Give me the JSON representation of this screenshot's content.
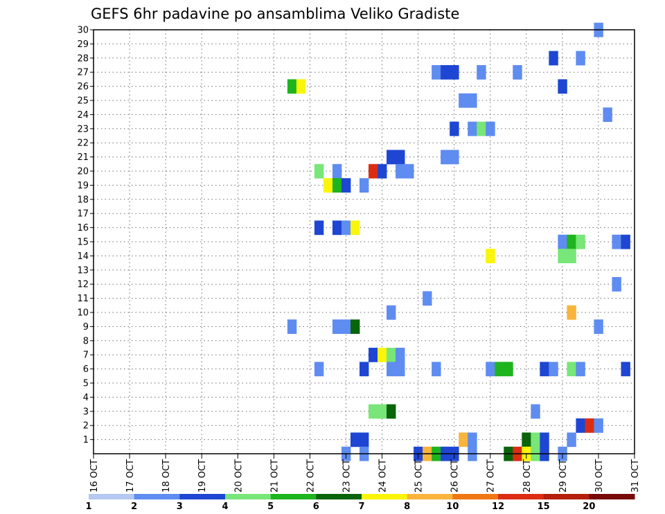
{
  "chart_data": {
    "type": "heatmap",
    "title": "GEFS 6hr padavine po ansamblima Veliko Gradiste",
    "x_tick_labels": [
      "16 OCT",
      "17 OCT",
      "18 OCT",
      "19 OCT",
      "20 OCT",
      "21 OCT",
      "22 OCT",
      "23 OCT",
      "24 OCT",
      "25 OCT",
      "26 OCT",
      "27 OCT",
      "28 OCT",
      "29 OCT",
      "30 OCT",
      "31 OCT"
    ],
    "x_range_days": [
      16,
      31
    ],
    "y_tick_labels": [
      "1",
      "2",
      "3",
      "4",
      "5",
      "6",
      "7",
      "8",
      "9",
      "10",
      "11",
      "12",
      "13",
      "14",
      "15",
      "16",
      "17",
      "18",
      "19",
      "20",
      "21",
      "22",
      "23",
      "24",
      "25",
      "26",
      "27",
      "28",
      "29",
      "30"
    ],
    "y_range": [
      0,
      30
    ],
    "grid": true,
    "legend": {
      "placement": "bottom",
      "colors": [
        "#b4c8f0",
        "#5f8cf0",
        "#1e46d2",
        "#78e678",
        "#1eb41e",
        "#0a640a",
        "#faf50a",
        "#fab43c",
        "#f07814",
        "#dc2d14",
        "#b41e0a",
        "#780a0a"
      ],
      "labels": [
        "1",
        "2",
        "3",
        "4",
        "5",
        "6",
        "7",
        "8",
        "10",
        "12",
        "15",
        "20"
      ]
    },
    "cells": [
      [
        30,
        30,
        1
      ],
      [
        29.5,
        28,
        1
      ],
      [
        28.75,
        28,
        2
      ],
      [
        25.5,
        27,
        1
      ],
      [
        25.75,
        27,
        2
      ],
      [
        26,
        27,
        2
      ],
      [
        26.75,
        27,
        1
      ],
      [
        27.75,
        27,
        1
      ],
      [
        21.5,
        26,
        4
      ],
      [
        21.75,
        26,
        6
      ],
      [
        29,
        26,
        2
      ],
      [
        26.25,
        25,
        1
      ],
      [
        26.5,
        25,
        1
      ],
      [
        30.25,
        24,
        1
      ],
      [
        26,
        23,
        2
      ],
      [
        26.5,
        23,
        1
      ],
      [
        26.75,
        23,
        3
      ],
      [
        27,
        23,
        1
      ],
      [
        24.25,
        21,
        2
      ],
      [
        24.5,
        21,
        2
      ],
      [
        25.75,
        21,
        1
      ],
      [
        26,
        21,
        1
      ],
      [
        22.25,
        20,
        3
      ],
      [
        22.75,
        20,
        1
      ],
      [
        23.75,
        20,
        9
      ],
      [
        24,
        20,
        2
      ],
      [
        24.5,
        20,
        1
      ],
      [
        24.75,
        20,
        1
      ],
      [
        22.5,
        19,
        6
      ],
      [
        22.75,
        19,
        4
      ],
      [
        23,
        19,
        2
      ],
      [
        23.5,
        19,
        1
      ],
      [
        22.25,
        16,
        2
      ],
      [
        22.75,
        16,
        2
      ],
      [
        23,
        16,
        1
      ],
      [
        23.25,
        16,
        6
      ],
      [
        29,
        15,
        1
      ],
      [
        29.25,
        15,
        4
      ],
      [
        29.5,
        15,
        3
      ],
      [
        30.5,
        15,
        1
      ],
      [
        30.75,
        15,
        2
      ],
      [
        27,
        14,
        6
      ],
      [
        29,
        14,
        3
      ],
      [
        29.25,
        14,
        3
      ],
      [
        30.5,
        12,
        1
      ],
      [
        25.25,
        11,
        1
      ],
      [
        24.25,
        10,
        1
      ],
      [
        29.25,
        10,
        7
      ],
      [
        21.5,
        9,
        1
      ],
      [
        22.75,
        9,
        1
      ],
      [
        23,
        9,
        1
      ],
      [
        23.25,
        9,
        5
      ],
      [
        30,
        9,
        1
      ],
      [
        23.75,
        7,
        2
      ],
      [
        24,
        7,
        6
      ],
      [
        24.25,
        7,
        3
      ],
      [
        24.5,
        7,
        1
      ],
      [
        22.25,
        6,
        1
      ],
      [
        23.5,
        6,
        2
      ],
      [
        24.25,
        6,
        1
      ],
      [
        24.5,
        6,
        1
      ],
      [
        25.5,
        6,
        1
      ],
      [
        27,
        6,
        1
      ],
      [
        27.25,
        6,
        4
      ],
      [
        27.5,
        6,
        4
      ],
      [
        28.5,
        6,
        2
      ],
      [
        28.75,
        6,
        1
      ],
      [
        29.25,
        6,
        3
      ],
      [
        29.5,
        6,
        1
      ],
      [
        30.75,
        6,
        2
      ],
      [
        23.75,
        3,
        3
      ],
      [
        24,
        3,
        3
      ],
      [
        24.25,
        3,
        5
      ],
      [
        28.25,
        3,
        1
      ],
      [
        29.5,
        2,
        2
      ],
      [
        29.75,
        2,
        9
      ],
      [
        30,
        2,
        1
      ],
      [
        23.25,
        1,
        2
      ],
      [
        23.5,
        1,
        2
      ],
      [
        26.25,
        1,
        7
      ],
      [
        26.5,
        1,
        1
      ],
      [
        28,
        1,
        5
      ],
      [
        28.25,
        1,
        3
      ],
      [
        28.5,
        1,
        2
      ],
      [
        29.25,
        1,
        1
      ],
      [
        23,
        0,
        1
      ],
      [
        23.5,
        0,
        1
      ],
      [
        25,
        0,
        2
      ],
      [
        25.25,
        0,
        7
      ],
      [
        25.5,
        0,
        4
      ],
      [
        25.75,
        0,
        2
      ],
      [
        26,
        0,
        2
      ],
      [
        26.5,
        0,
        1
      ],
      [
        27.5,
        0,
        5
      ],
      [
        27.75,
        0,
        9
      ],
      [
        28,
        0,
        6
      ],
      [
        28.25,
        0,
        3
      ],
      [
        28.5,
        0,
        2
      ],
      [
        29,
        0,
        1
      ]
    ]
  }
}
